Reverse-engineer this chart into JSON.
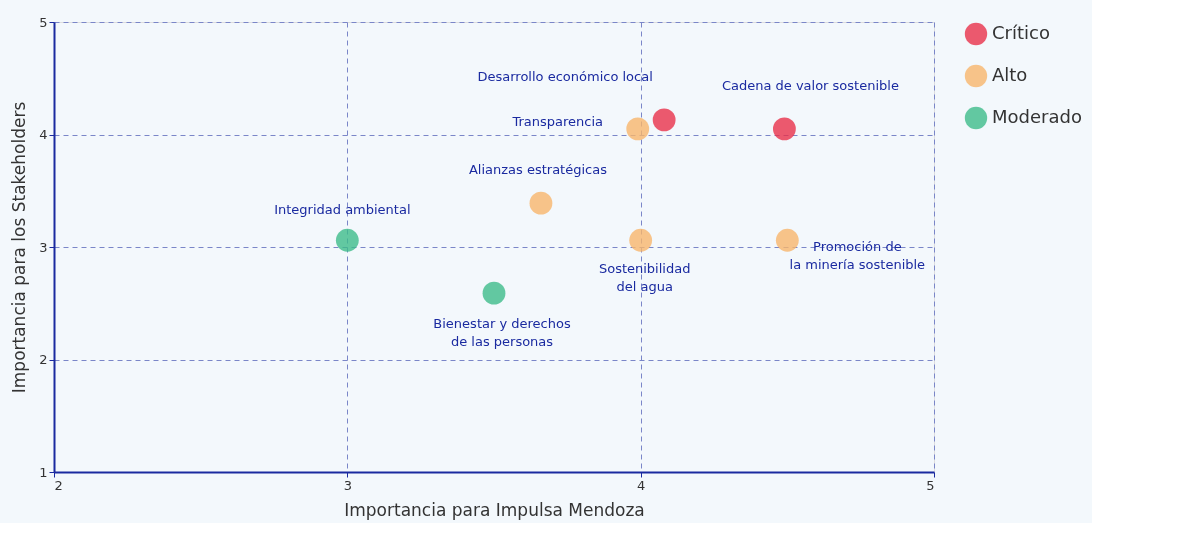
{
  "chart_data": {
    "type": "scatter",
    "xlabel": "Importancia para Impulsa Mendoza",
    "ylabel": "Importancia para los Stakeholders",
    "series": [
      {
        "name": "Crítico",
        "color": "#e8314a",
        "x": [
          4.08,
          4.49
        ],
        "values": [
          4.13,
          4.05
        ]
      },
      {
        "name": "Alto",
        "color": "#f7b56b",
        "x": [
          3.99,
          3.66,
          4.0,
          4.5
        ],
        "values": [
          4.05,
          3.39,
          3.06,
          3.06
        ]
      },
      {
        "name": "Moderado",
        "color": "#3dbb8a",
        "x": [
          3.0,
          3.5
        ],
        "values": [
          3.06,
          2.59
        ]
      }
    ],
    "annotations": [
      {
        "text": "Desarrollo económico local",
        "x": 4.08,
        "y": 4.13
      },
      {
        "text": "Cadena de valor sostenible",
        "x": 4.49,
        "y": 4.05
      },
      {
        "text": "Transparencia",
        "x": 3.99,
        "y": 4.05
      },
      {
        "text": "Alianzas estratégicas",
        "x": 3.66,
        "y": 3.39
      },
      {
        "text": "Integridad ambiental",
        "x": 3.0,
        "y": 3.06
      },
      {
        "text": "Sostenibilidad\ndel agua",
        "x": 4.0,
        "y": 3.06
      },
      {
        "text": "Promoción de\nla minería sostenible",
        "x": 4.5,
        "y": 3.06
      },
      {
        "text": "Bienestar y derechos\nde las personas",
        "x": 3.5,
        "y": 2.59
      }
    ],
    "xlim": [
      2,
      5
    ],
    "xticks": [
      2,
      3,
      4,
      5
    ],
    "ylim": [
      1,
      5
    ],
    "yticks": [
      1,
      2,
      3,
      4,
      5
    ],
    "grid": true,
    "legend": "right",
    "marker": "circle"
  }
}
